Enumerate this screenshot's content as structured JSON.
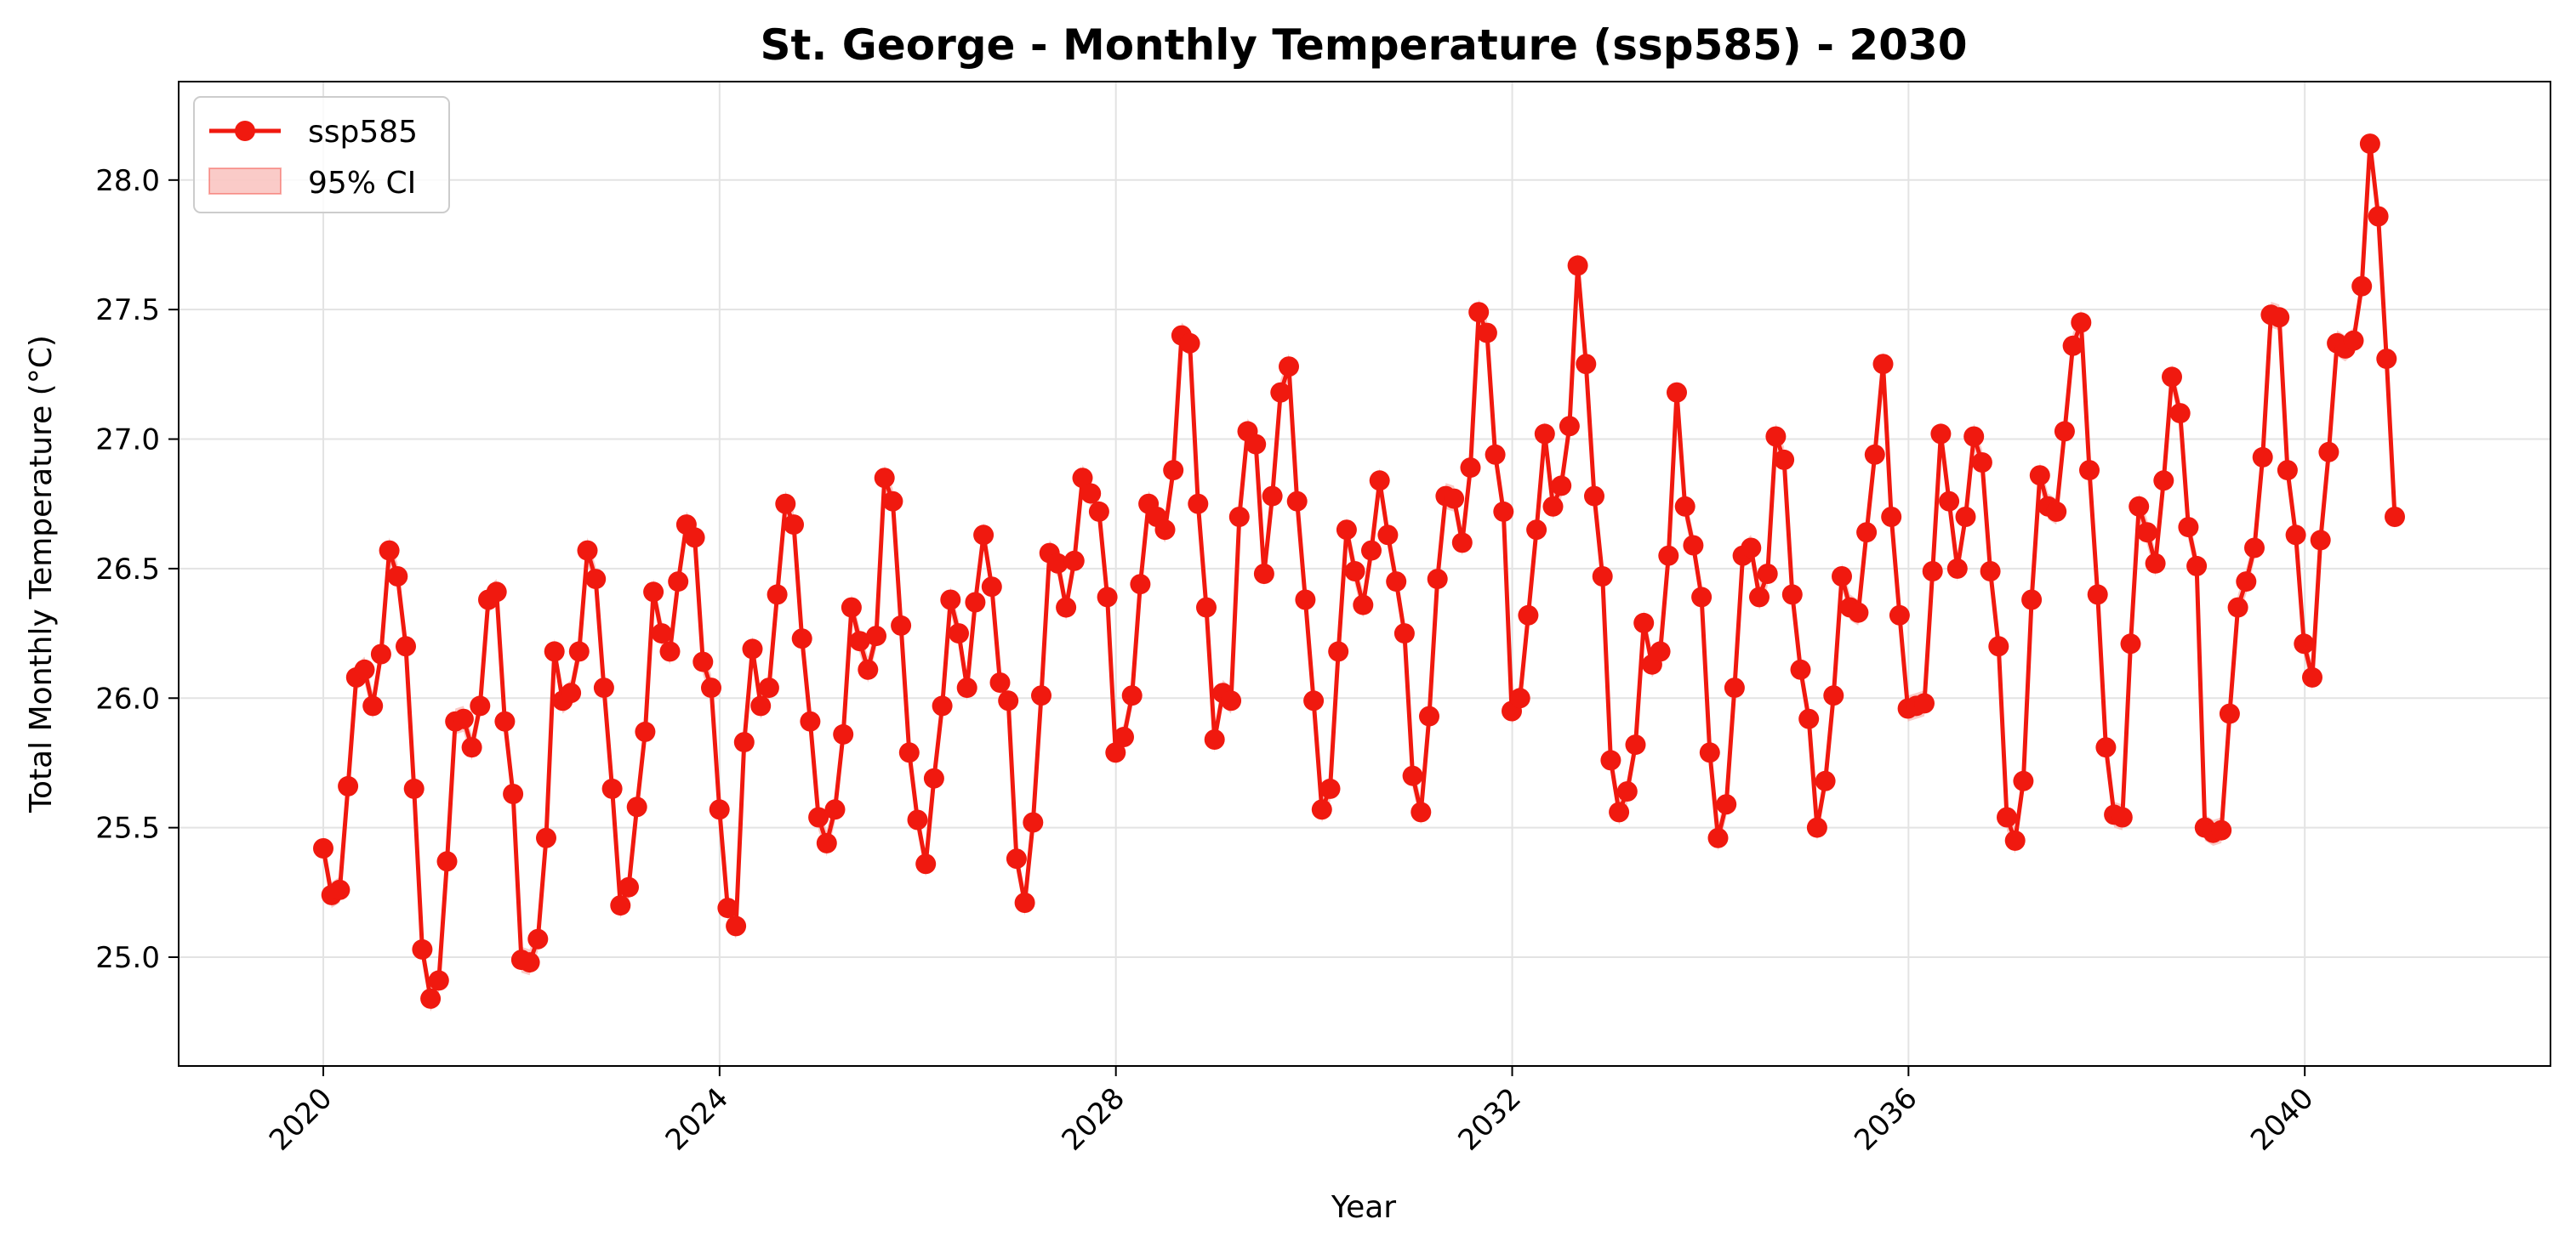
{
  "chart_data": {
    "type": "line",
    "title": "St. George - Monthly Temperature (ssp585) - 2030",
    "xlabel": "Year",
    "ylabel": "Total Monthly Temperature (°C)",
    "xlim": [
      2018.54,
      2042.48
    ],
    "ylim": [
      24.58,
      28.38
    ],
    "x_ticks": [
      2020,
      2024,
      2028,
      2032,
      2036,
      2040
    ],
    "x_tick_labels": [
      "2020",
      "2024",
      "2028",
      "2032",
      "2036",
      "2040"
    ],
    "y_ticks": [
      25.0,
      25.5,
      26.0,
      26.5,
      27.0,
      27.5,
      28.0
    ],
    "y_tick_labels": [
      "25.0",
      "25.5",
      "26.0",
      "26.5",
      "27.0",
      "27.5",
      "28.0"
    ],
    "grid": true,
    "legend": {
      "position": "top-left",
      "entries": [
        {
          "label": "ssp585",
          "kind": "line-marker"
        },
        {
          "label": "95% CI",
          "kind": "band"
        }
      ]
    },
    "colors": {
      "line": "#f0190f",
      "ci": "#f7a9a3"
    },
    "x_start": 2020.0,
    "x_step": 0.0833,
    "series": [
      {
        "name": "ssp585",
        "ci_half_width": 0.05,
        "values": [
          25.42,
          25.24,
          25.26,
          25.66,
          26.08,
          26.11,
          25.97,
          26.17,
          26.57,
          26.47,
          26.2,
          25.65,
          25.03,
          24.84,
          24.91,
          25.37,
          25.91,
          25.92,
          25.81,
          25.97,
          26.38,
          26.41,
          25.91,
          25.63,
          24.99,
          24.98,
          25.07,
          25.46,
          26.18,
          25.99,
          26.02,
          26.18,
          26.57,
          26.46,
          26.04,
          25.65,
          25.2,
          25.27,
          25.58,
          25.87,
          26.41,
          26.25,
          26.18,
          26.45,
          26.67,
          26.62,
          26.14,
          26.04,
          25.57,
          25.19,
          25.12,
          25.83,
          26.19,
          25.97,
          26.04,
          26.4,
          26.75,
          26.67,
          26.23,
          25.91,
          25.54,
          25.44,
          25.57,
          25.86,
          26.35,
          26.22,
          26.11,
          26.24,
          26.85,
          26.76,
          26.28,
          25.79,
          25.53,
          25.36,
          25.69,
          25.97,
          26.38,
          26.25,
          26.04,
          26.37,
          26.63,
          26.43,
          26.06,
          25.99,
          25.38,
          25.21,
          25.52,
          26.01,
          26.56,
          26.52,
          26.35,
          26.53,
          26.85,
          26.79,
          26.72,
          26.39,
          25.79,
          25.85,
          26.01,
          26.44,
          26.75,
          26.7,
          26.65,
          26.88,
          27.4,
          27.37,
          26.75,
          26.35,
          25.84,
          26.02,
          25.99,
          26.7,
          27.03,
          26.98,
          26.48,
          26.78,
          27.18,
          27.28,
          26.76,
          26.38,
          25.99,
          25.57,
          25.65,
          26.18,
          26.65,
          26.49,
          26.36,
          26.57,
          26.84,
          26.63,
          26.45,
          26.25,
          25.7,
          25.56,
          25.93,
          26.46,
          26.78,
          26.77,
          26.6,
          26.89,
          27.49,
          27.41,
          26.94,
          26.72,
          25.95,
          26.0,
          26.32,
          26.65,
          27.02,
          26.74,
          26.82,
          27.05,
          27.67,
          27.29,
          26.78,
          26.47,
          25.76,
          25.56,
          25.64,
          25.82,
          26.29,
          26.13,
          26.18,
          26.55,
          27.18,
          26.74,
          26.59,
          26.39,
          25.79,
          25.46,
          25.59,
          26.04,
          26.55,
          26.58,
          26.39,
          26.48,
          27.01,
          26.92,
          26.4,
          26.11,
          25.92,
          25.5,
          25.68,
          26.01,
          26.47,
          26.35,
          26.33,
          26.64,
          26.94,
          27.29,
          26.7,
          26.32,
          25.96,
          25.97,
          25.98,
          26.49,
          27.02,
          26.76,
          26.5,
          26.7,
          27.01,
          26.91,
          26.49,
          26.2,
          25.54,
          25.45,
          25.68,
          26.38,
          26.86,
          26.74,
          26.72,
          27.03,
          27.36,
          27.45,
          26.88,
          26.4,
          25.81,
          25.55,
          25.54,
          26.21,
          26.74,
          26.64,
          26.52,
          26.84,
          27.24,
          27.1,
          26.66,
          26.51,
          25.5,
          25.48,
          25.49,
          25.94,
          26.35,
          26.45,
          26.58,
          26.93,
          27.48,
          27.47,
          26.88,
          26.63,
          26.21,
          26.08,
          26.61,
          26.95,
          27.37,
          27.35,
          27.38,
          27.59,
          28.14,
          27.86,
          27.31,
          26.7
        ]
      }
    ]
  }
}
